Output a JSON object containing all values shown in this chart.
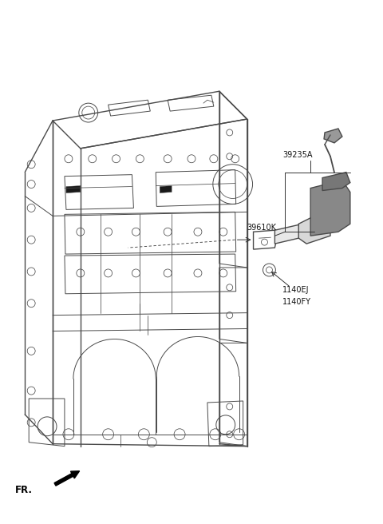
{
  "background_color": "#ffffff",
  "fig_width": 4.8,
  "fig_height": 6.56,
  "dpi": 100,
  "line_color": "#4a4a4a",
  "text_color": "#111111",
  "label_39235A": "39235A",
  "label_39610K": "39610K",
  "label_1140EJ": "1140EJ",
  "label_1140FY": "1140FY",
  "label_FR": "FR.",
  "label_fontsize": 7.0,
  "fr_fontsize": 8.5
}
